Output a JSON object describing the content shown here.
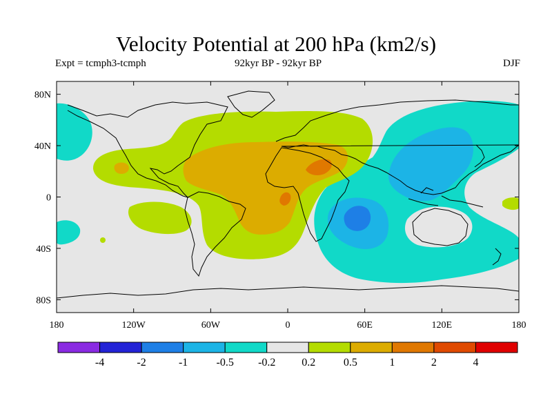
{
  "title": "Velocity Potential at 200 hPa (km2/s)",
  "subtitle_left": "Expt = tcmph3-tcmph",
  "subtitle_center": "92kyr BP - 92kyr BP",
  "subtitle_right": "DJF",
  "map": {
    "projection": "cylindrical-equidistant",
    "lon_range": [
      -180,
      180
    ],
    "lat_range": [
      -90,
      90
    ],
    "background_color": "#e6e6e6",
    "coastline_color": "#000000",
    "lon_tick_values": [
      -180,
      -120,
      -60,
      0,
      60,
      120,
      180
    ],
    "lon_tick_labels": [
      "180",
      "120W",
      "60W",
      "0",
      "60E",
      "120E",
      "180"
    ],
    "lat_tick_values": [
      80,
      40,
      0,
      -40,
      -80
    ],
    "lat_tick_labels": [
      "80N",
      "40N",
      "0",
      "40S",
      "80S"
    ]
  },
  "colorbar": {
    "colors": [
      "#8a2be2",
      "#2323d6",
      "#1e7fe6",
      "#1cb4e6",
      "#11d9c8",
      "#e6e6e6",
      "#b4dc00",
      "#dcac00",
      "#e07800",
      "#e04a00",
      "#e00000"
    ],
    "labels": [
      "-4",
      "-2",
      "-1",
      "-0.5",
      "-0.2",
      "0.2",
      "0.5",
      "1",
      "2",
      "4"
    ]
  }
}
